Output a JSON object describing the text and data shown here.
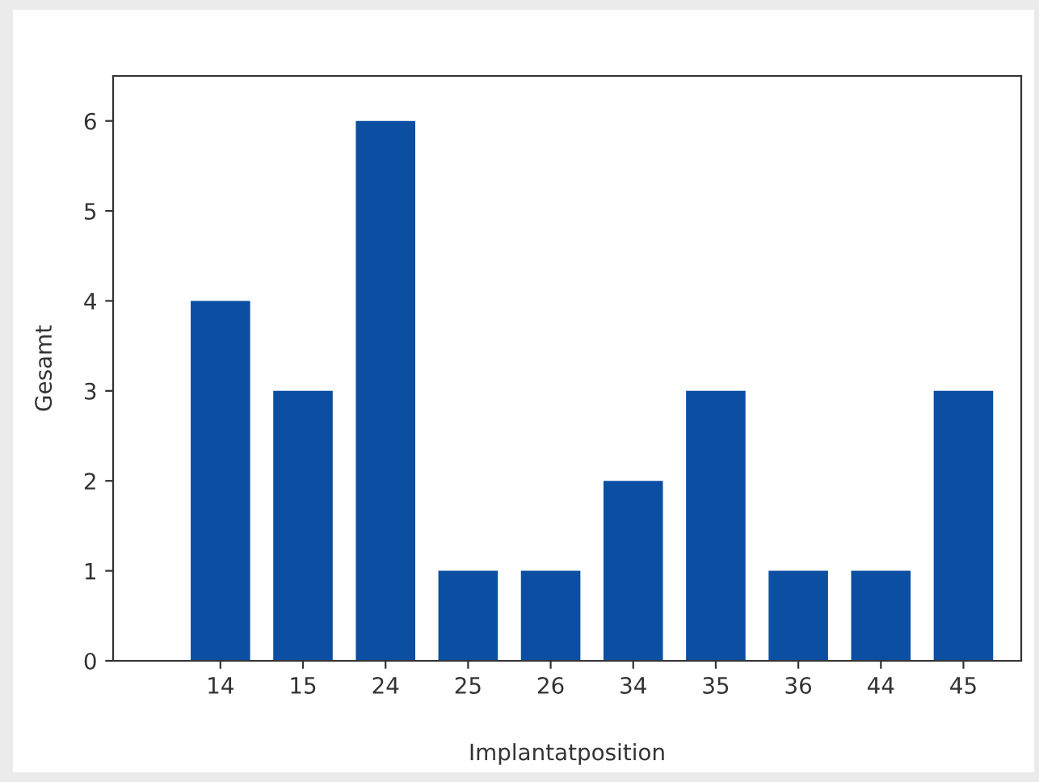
{
  "chart_data": {
    "type": "bar",
    "xlabel": "Implantatposition",
    "ylabel": "Gesamt",
    "categories": [
      "14",
      "15",
      "24",
      "25",
      "26",
      "34",
      "35",
      "36",
      "44",
      "45"
    ],
    "values": [
      4,
      3,
      6,
      1,
      1,
      2,
      3,
      1,
      1,
      3
    ],
    "color": "#0b4ea2",
    "ylim": [
      0,
      6.5
    ],
    "yticks": [
      0,
      1,
      2,
      3,
      4,
      5,
      6
    ],
    "grid": false,
    "legend": false
  }
}
